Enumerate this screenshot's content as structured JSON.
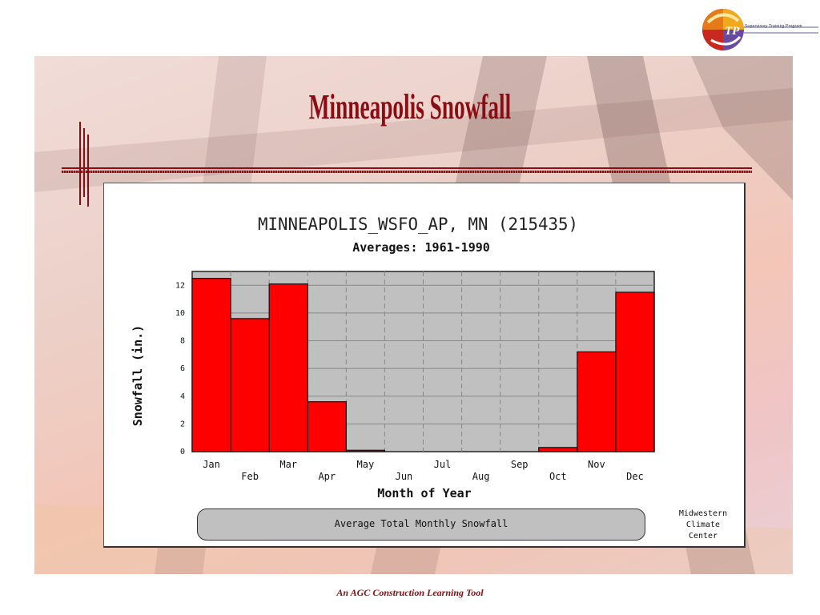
{
  "slide": {
    "title": "Minneapolis Snowfall",
    "footer": "An AGC Construction Learning Tool",
    "logo_text": "Supervisory Training Program",
    "logo_letters": "TP",
    "accent": "#8b0d14"
  },
  "chart_data": {
    "type": "bar",
    "title": "MINNEAPOLIS_WSFO_AP, MN (215435)",
    "subtitle": "Averages: 1961-1990",
    "xlabel": "Month of Year",
    "ylabel": "Snowfall (in.)",
    "categories": [
      "Jan",
      "Feb",
      "Mar",
      "Apr",
      "May",
      "Jun",
      "Jul",
      "Aug",
      "Sep",
      "Oct",
      "Nov",
      "Dec"
    ],
    "values": [
      12.5,
      9.6,
      12.1,
      3.6,
      0.1,
      0.0,
      0.0,
      0.0,
      0.0,
      0.3,
      7.2,
      11.5
    ],
    "ylim": [
      0,
      13
    ],
    "yticks": [
      0,
      2,
      4,
      6,
      8,
      10,
      12
    ],
    "grid": true,
    "bar_color": "#ff0000",
    "plot_background": "#c0c0c0",
    "caption": "Average Total Monthly Snowfall",
    "credit": [
      "Midwestern",
      "Climate",
      "Center"
    ]
  }
}
